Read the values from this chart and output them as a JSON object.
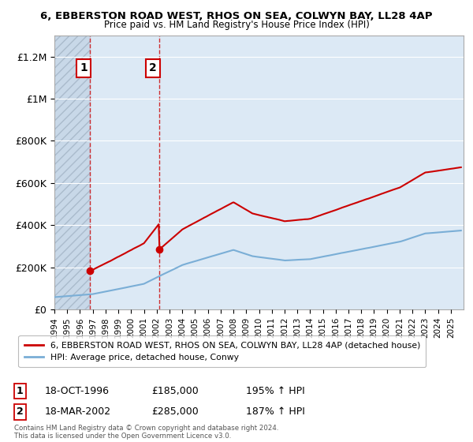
{
  "title_line1": "6, EBBERSTON ROAD WEST, RHOS ON SEA, COLWYN BAY, LL28 4AP",
  "title_line2": "Price paid vs. HM Land Registry's House Price Index (HPI)",
  "background_color": "#ffffff",
  "plot_bg_color": "#dce9f5",
  "hatch_region_color": "#c8d8e8",
  "ylim": [
    0,
    1300000
  ],
  "yticks": [
    0,
    200000,
    400000,
    600000,
    800000,
    1000000,
    1200000
  ],
  "ytick_labels": [
    "£0",
    "£200K",
    "£400K",
    "£600K",
    "£800K",
    "£1M",
    "£1.2M"
  ],
  "sale1": {
    "date_num": 1996.79,
    "price": 185000,
    "label": "1",
    "date_str": "18-OCT-1996",
    "hpi_pct": "195% ↑ HPI"
  },
  "sale2": {
    "date_num": 2002.21,
    "price": 285000,
    "label": "2",
    "date_str": "18-MAR-2002",
    "hpi_pct": "187% ↑ HPI"
  },
  "legend_entries": [
    "6, EBBERSTON ROAD WEST, RHOS ON SEA, COLWYN BAY, LL28 4AP (detached house)",
    "HPI: Average price, detached house, Conwy"
  ],
  "legend_colors": [
    "#cc0000",
    "#7aaed6"
  ],
  "footer_line1": "Contains HM Land Registry data © Crown copyright and database right 2024.",
  "footer_line2": "This data is licensed under the Open Government Licence v3.0.",
  "xmin": 1994,
  "xmax": 2026,
  "hatch_xmax": 1996.79,
  "sale1_price": 185000,
  "sale2_price": 285000
}
